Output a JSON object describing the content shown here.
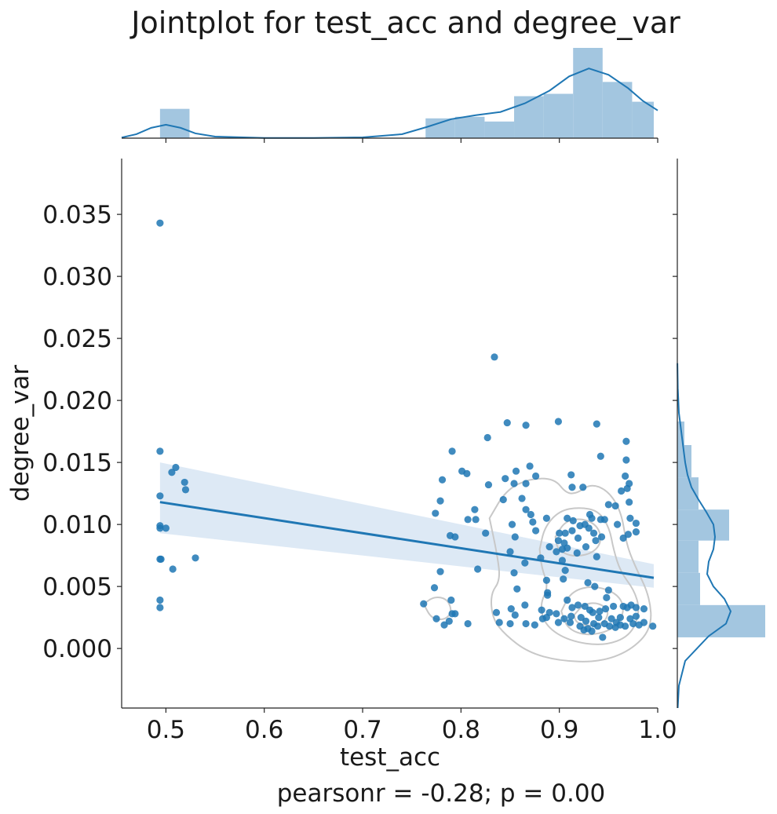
{
  "chart_data": {
    "type": "scatter",
    "title": "Jointplot for test_acc and degree_var",
    "xlabel": "test_acc",
    "ylabel": "degree_var",
    "annotation": "pearsonr = -0.28; p = 0.00",
    "xlim": [
      0.455,
      1.0
    ],
    "ylim": [
      -0.0048,
      0.0395
    ],
    "x_ticks": [
      0.5,
      0.6,
      0.7,
      0.8,
      0.9,
      1.0
    ],
    "x_tick_labels": [
      "0.5",
      "0.6",
      "0.7",
      "0.8",
      "0.9",
      "1.0"
    ],
    "y_ticks": [
      0.0,
      0.005,
      0.01,
      0.015,
      0.02,
      0.025,
      0.03,
      0.035
    ],
    "y_tick_labels": [
      "0.000",
      "0.005",
      "0.010",
      "0.015",
      "0.020",
      "0.025",
      "0.030",
      "0.035"
    ],
    "colors": {
      "points": "#1f77b4",
      "band": "#c6dbef",
      "kde_contour": "#c8c8c8",
      "hist": "#a3c6e0",
      "axes": "#222222"
    },
    "regression": {
      "x": [
        0.494,
        0.996
      ],
      "y": [
        0.0118,
        0.0057
      ],
      "ci_lower": [
        0.0093,
        0.0049
      ],
      "ci_upper": [
        0.015,
        0.0068
      ]
    },
    "points": [
      [
        0.494,
        0.0343
      ],
      [
        0.494,
        0.0159
      ],
      [
        0.494,
        0.0123
      ],
      [
        0.494,
        0.0099
      ],
      [
        0.494,
        0.0097
      ],
      [
        0.5,
        0.0097
      ],
      [
        0.494,
        0.0072
      ],
      [
        0.495,
        0.0072
      ],
      [
        0.494,
        0.0039
      ],
      [
        0.494,
        0.0033
      ],
      [
        0.506,
        0.0142
      ],
      [
        0.51,
        0.0146
      ],
      [
        0.519,
        0.0134
      ],
      [
        0.52,
        0.0128
      ],
      [
        0.507,
        0.0064
      ],
      [
        0.53,
        0.0073
      ],
      [
        0.834,
        0.0235
      ],
      [
        0.847,
        0.0182
      ],
      [
        0.866,
        0.018
      ],
      [
        0.899,
        0.0183
      ],
      [
        0.938,
        0.0181
      ],
      [
        0.827,
        0.017
      ],
      [
        0.968,
        0.0167
      ],
      [
        0.791,
        0.0159
      ],
      [
        0.942,
        0.0155
      ],
      [
        0.968,
        0.0152
      ],
      [
        0.801,
        0.0143
      ],
      [
        0.806,
        0.0141
      ],
      [
        0.87,
        0.0147
      ],
      [
        0.856,
        0.0143
      ],
      [
        0.876,
        0.0139
      ],
      [
        0.912,
        0.014
      ],
      [
        0.967,
        0.0139
      ],
      [
        0.781,
        0.0136
      ],
      [
        0.845,
        0.0137
      ],
      [
        0.828,
        0.0132
      ],
      [
        0.854,
        0.0133
      ],
      [
        0.866,
        0.0133
      ],
      [
        0.913,
        0.013
      ],
      [
        0.924,
        0.013
      ],
      [
        0.971,
        0.0133
      ],
      [
        0.963,
        0.0127
      ],
      [
        0.969,
        0.0129
      ],
      [
        0.814,
        0.0112
      ],
      [
        0.843,
        0.012
      ],
      [
        0.862,
        0.0121
      ],
      [
        0.866,
        0.0112
      ],
      [
        0.871,
        0.0108
      ],
      [
        0.908,
        0.0105
      ],
      [
        0.95,
        0.0116
      ],
      [
        0.957,
        0.0115
      ],
      [
        0.971,
        0.0118
      ],
      [
        0.779,
        0.0119
      ],
      [
        0.774,
        0.0109
      ],
      [
        0.807,
        0.0104
      ],
      [
        0.815,
        0.0104
      ],
      [
        0.852,
        0.01
      ],
      [
        0.873,
        0.0102
      ],
      [
        0.887,
        0.0105
      ],
      [
        0.914,
        0.0103
      ],
      [
        0.926,
        0.01
      ],
      [
        0.933,
        0.0105
      ],
      [
        0.946,
        0.0104
      ],
      [
        0.959,
        0.01
      ],
      [
        0.978,
        0.0101
      ],
      [
        0.942,
        0.0104
      ],
      [
        0.931,
        0.0108
      ],
      [
        0.972,
        0.0105
      ],
      [
        0.789,
        0.0091
      ],
      [
        0.794,
        0.009
      ],
      [
        0.825,
        0.0093
      ],
      [
        0.855,
        0.009
      ],
      [
        0.876,
        0.0095
      ],
      [
        0.9,
        0.0093
      ],
      [
        0.906,
        0.0093
      ],
      [
        0.913,
        0.0095
      ],
      [
        0.921,
        0.0099
      ],
      [
        0.93,
        0.0097
      ],
      [
        0.935,
        0.0093
      ],
      [
        0.943,
        0.009
      ],
      [
        0.965,
        0.0089
      ],
      [
        0.97,
        0.0092
      ],
      [
        0.978,
        0.0094
      ],
      [
        0.899,
        0.0087
      ],
      [
        0.905,
        0.0085
      ],
      [
        0.919,
        0.0089
      ],
      [
        0.937,
        0.0087
      ],
      [
        0.89,
        0.0082
      ],
      [
        0.897,
        0.0078
      ],
      [
        0.903,
        0.008
      ],
      [
        0.908,
        0.0081
      ],
      [
        0.85,
        0.0078
      ],
      [
        0.918,
        0.0077
      ],
      [
        0.927,
        0.0082
      ],
      [
        0.938,
        0.0074
      ],
      [
        0.881,
        0.0073
      ],
      [
        0.903,
        0.0071
      ],
      [
        0.865,
        0.0069
      ],
      [
        0.817,
        0.0064
      ],
      [
        0.779,
        0.0062
      ],
      [
        0.906,
        0.0063
      ],
      [
        0.854,
        0.0061
      ],
      [
        0.887,
        0.0055
      ],
      [
        0.904,
        0.0056
      ],
      [
        0.929,
        0.0053
      ],
      [
        0.936,
        0.005
      ],
      [
        0.773,
        0.0049
      ],
      [
        0.857,
        0.0048
      ],
      [
        0.888,
        0.0045
      ],
      [
        0.888,
        0.0043
      ],
      [
        0.95,
        0.0047
      ],
      [
        0.948,
        0.0041
      ],
      [
        0.762,
        0.0036
      ],
      [
        0.79,
        0.0039
      ],
      [
        0.836,
        0.0029
      ],
      [
        0.851,
        0.0032
      ],
      [
        0.865,
        0.0035
      ],
      [
        0.882,
        0.0031
      ],
      [
        0.89,
        0.0029
      ],
      [
        0.908,
        0.0039
      ],
      [
        0.913,
        0.0033
      ],
      [
        0.919,
        0.0035
      ],
      [
        0.926,
        0.0034
      ],
      [
        0.931,
        0.0031
      ],
      [
        0.934,
        0.0029
      ],
      [
        0.941,
        0.003
      ],
      [
        0.947,
        0.0032
      ],
      [
        0.955,
        0.0034
      ],
      [
        0.965,
        0.0034
      ],
      [
        0.969,
        0.0033
      ],
      [
        0.973,
        0.0035
      ],
      [
        0.978,
        0.0033
      ],
      [
        0.986,
        0.0032
      ],
      [
        0.791,
        0.0028
      ],
      [
        0.794,
        0.0028
      ],
      [
        0.855,
        0.0027
      ],
      [
        0.897,
        0.0028
      ],
      [
        0.905,
        0.0024
      ],
      [
        0.912,
        0.0026
      ],
      [
        0.922,
        0.0025
      ],
      [
        0.927,
        0.0022
      ],
      [
        0.94,
        0.0025
      ],
      [
        0.953,
        0.0024
      ],
      [
        0.958,
        0.0021
      ],
      [
        0.962,
        0.0025
      ],
      [
        0.972,
        0.0024
      ],
      [
        0.978,
        0.0026
      ],
      [
        0.986,
        0.0021
      ],
      [
        0.775,
        0.0024
      ],
      [
        0.783,
        0.0019
      ],
      [
        0.788,
        0.0022
      ],
      [
        0.807,
        0.002
      ],
      [
        0.839,
        0.0021
      ],
      [
        0.85,
        0.002
      ],
      [
        0.866,
        0.002
      ],
      [
        0.875,
        0.0019
      ],
      [
        0.899,
        0.0021
      ],
      [
        0.911,
        0.0021
      ],
      [
        0.921,
        0.0018
      ],
      [
        0.925,
        0.0015
      ],
      [
        0.929,
        0.0016
      ],
      [
        0.935,
        0.002
      ],
      [
        0.939,
        0.0018
      ],
      [
        0.946,
        0.002
      ],
      [
        0.951,
        0.0018
      ],
      [
        0.957,
        0.0017
      ],
      [
        0.962,
        0.0019
      ],
      [
        0.967,
        0.0018
      ],
      [
        0.975,
        0.002
      ],
      [
        0.981,
        0.0019
      ],
      [
        0.995,
        0.0018
      ],
      [
        0.933,
        0.0014
      ],
      [
        0.944,
        0.0009
      ],
      [
        0.887,
        0.0025
      ],
      [
        0.883,
        0.0024
      ]
    ],
    "kde_contours": [
      [
        [
          0.762,
          0.0036
        ],
        [
          0.773,
          0.0042
        ],
        [
          0.786,
          0.004
        ],
        [
          0.791,
          0.003
        ],
        [
          0.784,
          0.0023
        ],
        [
          0.77,
          0.0024
        ],
        [
          0.762,
          0.0036
        ]
      ],
      [
        [
          0.829,
          0.0105
        ],
        [
          0.846,
          0.0128
        ],
        [
          0.87,
          0.0137
        ],
        [
          0.895,
          0.0137
        ],
        [
          0.907,
          0.0125
        ],
        [
          0.918,
          0.0125
        ],
        [
          0.932,
          0.0133
        ],
        [
          0.95,
          0.0127
        ],
        [
          0.963,
          0.011
        ],
        [
          0.968,
          0.0085
        ],
        [
          0.976,
          0.0068
        ],
        [
          0.992,
          0.0042
        ],
        [
          0.994,
          0.0016
        ],
        [
          0.972,
          -0.0002
        ],
        [
          0.94,
          -0.0011
        ],
        [
          0.9,
          -0.001
        ],
        [
          0.868,
          -0.0003
        ],
        [
          0.845,
          0.0011
        ],
        [
          0.832,
          0.0024
        ],
        [
          0.83,
          0.0044
        ],
        [
          0.84,
          0.0055
        ],
        [
          0.837,
          0.0075
        ],
        [
          0.829,
          0.0105
        ]
      ],
      [
        [
          0.88,
          0.008
        ],
        [
          0.885,
          0.0098
        ],
        [
          0.9,
          0.0111
        ],
        [
          0.92,
          0.0114
        ],
        [
          0.94,
          0.0111
        ],
        [
          0.951,
          0.0097
        ],
        [
          0.955,
          0.008
        ],
        [
          0.962,
          0.0062
        ],
        [
          0.977,
          0.0046
        ],
        [
          0.982,
          0.0029
        ],
        [
          0.972,
          0.001
        ],
        [
          0.945,
          0.0002
        ],
        [
          0.91,
          0.0006
        ],
        [
          0.886,
          0.0018
        ],
        [
          0.88,
          0.0035
        ],
        [
          0.889,
          0.005
        ],
        [
          0.882,
          0.0065
        ],
        [
          0.88,
          0.008
        ]
      ],
      [
        [
          0.896,
          0.009
        ],
        [
          0.906,
          0.0103
        ],
        [
          0.925,
          0.0105
        ],
        [
          0.94,
          0.0098
        ],
        [
          0.943,
          0.0085
        ],
        [
          0.932,
          0.0076
        ],
        [
          0.912,
          0.0074
        ],
        [
          0.898,
          0.008
        ],
        [
          0.896,
          0.009
        ]
      ],
      [
        [
          0.902,
          0.003
        ],
        [
          0.912,
          0.0046
        ],
        [
          0.935,
          0.0051
        ],
        [
          0.96,
          0.0044
        ],
        [
          0.967,
          0.003
        ],
        [
          0.955,
          0.0015
        ],
        [
          0.928,
          0.001
        ],
        [
          0.908,
          0.0016
        ],
        [
          0.902,
          0.003
        ]
      ],
      [
        [
          0.915,
          0.0027
        ],
        [
          0.925,
          0.0036
        ],
        [
          0.94,
          0.0037
        ],
        [
          0.951,
          0.003
        ],
        [
          0.945,
          0.002
        ],
        [
          0.928,
          0.0018
        ],
        [
          0.917,
          0.0021
        ],
        [
          0.915,
          0.0027
        ]
      ]
    ],
    "marginal_x_hist": {
      "bins": [
        [
          0.494,
          0.524,
          0.037
        ],
        [
          0.524,
          0.554,
          0
        ],
        [
          0.554,
          0.584,
          0
        ],
        [
          0.584,
          0.614,
          0
        ],
        [
          0.614,
          0.644,
          0
        ],
        [
          0.644,
          0.674,
          0
        ],
        [
          0.674,
          0.704,
          0
        ],
        [
          0.704,
          0.734,
          0
        ],
        [
          0.734,
          0.764,
          0
        ],
        [
          0.764,
          0.794,
          0.025
        ],
        [
          0.794,
          0.824,
          0.027
        ],
        [
          0.824,
          0.854,
          0.021
        ],
        [
          0.854,
          0.884,
          0.053
        ],
        [
          0.884,
          0.914,
          0.056
        ],
        [
          0.914,
          0.944,
          0.114
        ],
        [
          0.944,
          0.974,
          0.071
        ],
        [
          0.974,
          0.996,
          0.046
        ]
      ],
      "kde": [
        [
          0.455,
          0.0008
        ],
        [
          0.47,
          0.005
        ],
        [
          0.485,
          0.013
        ],
        [
          0.5,
          0.017
        ],
        [
          0.515,
          0.013
        ],
        [
          0.53,
          0.006
        ],
        [
          0.55,
          0.002
        ],
        [
          0.6,
          0.0003
        ],
        [
          0.65,
          0.0002
        ],
        [
          0.7,
          0.001
        ],
        [
          0.74,
          0.005
        ],
        [
          0.765,
          0.014
        ],
        [
          0.79,
          0.024
        ],
        [
          0.815,
          0.029
        ],
        [
          0.84,
          0.033
        ],
        [
          0.865,
          0.044
        ],
        [
          0.89,
          0.06
        ],
        [
          0.91,
          0.078
        ],
        [
          0.93,
          0.088
        ],
        [
          0.95,
          0.08
        ],
        [
          0.97,
          0.063
        ],
        [
          0.985,
          0.047
        ],
        [
          1.0,
          0.035
        ]
      ]
    },
    "marginal_y_hist": {
      "bins": [
        [
          0.0009,
          0.0035,
          0.112
        ],
        [
          0.0035,
          0.0061,
          0.029
        ],
        [
          0.0061,
          0.0087,
          0.027
        ],
        [
          0.0087,
          0.0112,
          0.066
        ],
        [
          0.0112,
          0.0138,
          0.027
        ],
        [
          0.0138,
          0.0164,
          0.018
        ],
        [
          0.0164,
          0.0183,
          0.009
        ]
      ],
      "kde": [
        [
          -0.0048,
          0.0005
        ],
        [
          -0.003,
          0.002
        ],
        [
          -0.001,
          0.01
        ],
        [
          0.001,
          0.04
        ],
        [
          0.002,
          0.062
        ],
        [
          0.003,
          0.068
        ],
        [
          0.004,
          0.06
        ],
        [
          0.005,
          0.046
        ],
        [
          0.006,
          0.038
        ],
        [
          0.007,
          0.04
        ],
        [
          0.008,
          0.046
        ],
        [
          0.009,
          0.048
        ],
        [
          0.01,
          0.046
        ],
        [
          0.011,
          0.037
        ],
        [
          0.012,
          0.027
        ],
        [
          0.013,
          0.018
        ],
        [
          0.014,
          0.013
        ],
        [
          0.015,
          0.01
        ],
        [
          0.016,
          0.008
        ],
        [
          0.017,
          0.006
        ],
        [
          0.018,
          0.004
        ],
        [
          0.019,
          0.002
        ],
        [
          0.021,
          0.0006
        ],
        [
          0.023,
          0.0001
        ]
      ]
    }
  }
}
